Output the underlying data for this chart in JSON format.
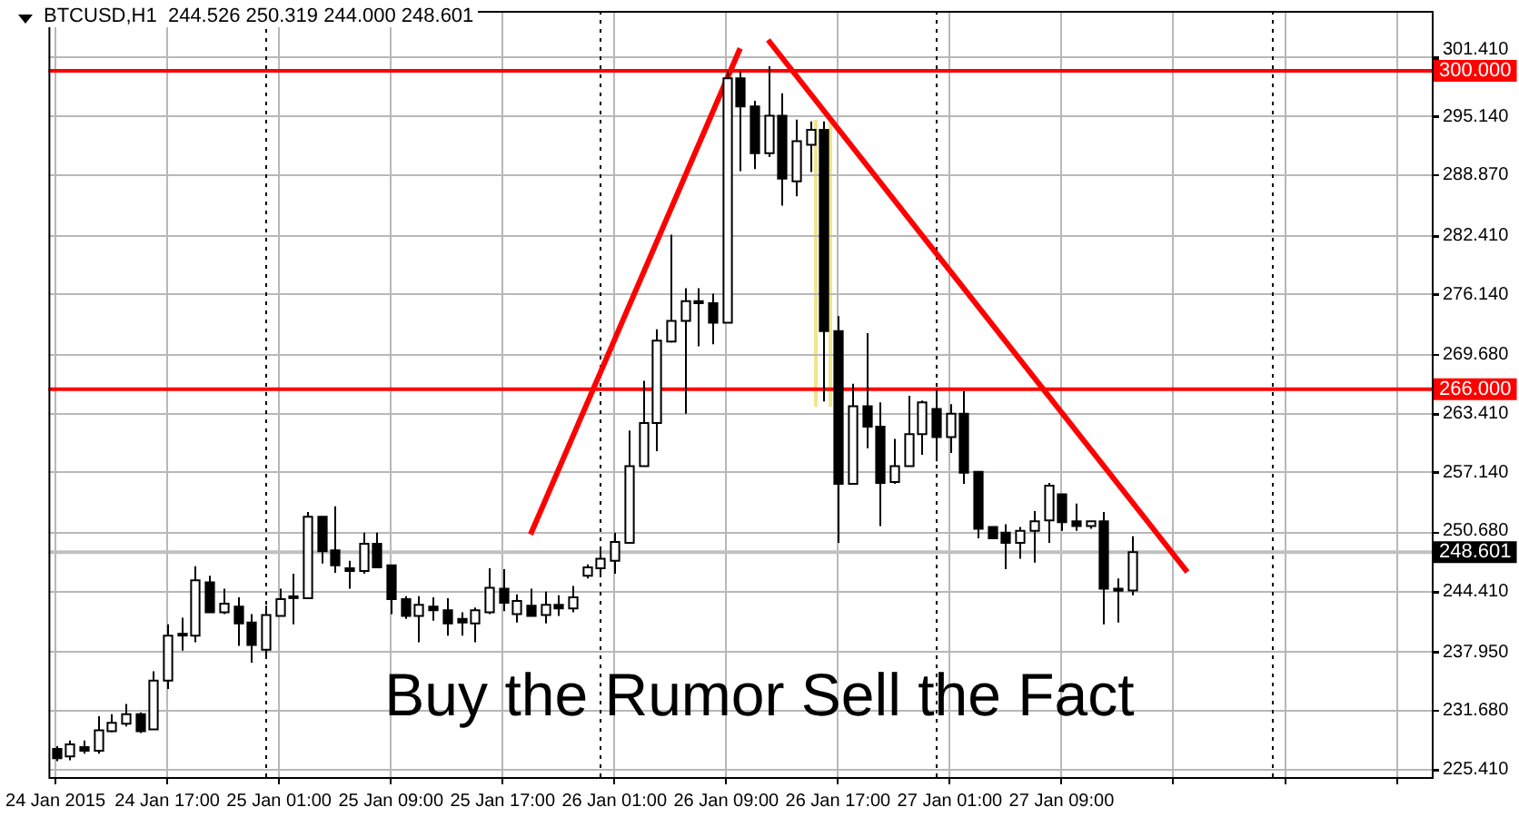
{
  "chart_data": {
    "type": "candlestick",
    "title": "BTCUSD,H1  244.526 250.319 244.000 248.601",
    "annotations": [
      "Buy the Rumor Sell the Fact"
    ],
    "x": [
      "2015-01-24T09:00",
      "2015-01-24T10:00",
      "2015-01-24T11:00",
      "2015-01-24T12:00",
      "2015-01-24T13:00",
      "2015-01-24T14:00",
      "2015-01-24T15:00",
      "2015-01-24T16:00",
      "2015-01-24T17:00",
      "2015-01-24T18:00",
      "2015-01-24T19:00",
      "2015-01-24T20:00",
      "2015-01-24T21:00",
      "2015-01-24T22:00",
      "2015-01-24T23:00",
      "2015-01-25T00:00",
      "2015-01-25T01:00",
      "2015-01-25T02:00",
      "2015-01-25T03:00",
      "2015-01-25T04:00",
      "2015-01-25T05:00",
      "2015-01-25T06:00",
      "2015-01-25T07:00",
      "2015-01-25T08:00",
      "2015-01-25T09:00",
      "2015-01-25T10:00",
      "2015-01-25T11:00",
      "2015-01-25T12:00",
      "2015-01-25T13:00",
      "2015-01-25T14:00",
      "2015-01-25T15:00",
      "2015-01-25T16:00",
      "2015-01-25T17:00",
      "2015-01-25T18:00",
      "2015-01-25T19:00",
      "2015-01-25T20:00",
      "2015-01-25T21:00",
      "2015-01-25T22:00",
      "2015-01-25T23:00",
      "2015-01-26T00:00",
      "2015-01-26T01:00",
      "2015-01-26T02:00",
      "2015-01-26T03:00",
      "2015-01-26T04:00",
      "2015-01-26T05:00",
      "2015-01-26T06:00",
      "2015-01-26T07:00",
      "2015-01-26T08:00",
      "2015-01-26T09:00",
      "2015-01-26T10:00",
      "2015-01-26T11:00",
      "2015-01-26T12:00",
      "2015-01-26T13:00",
      "2015-01-26T14:00",
      "2015-01-26T15:00",
      "2015-01-26T16:00",
      "2015-01-26T17:00",
      "2015-01-26T18:00",
      "2015-01-26T19:00",
      "2015-01-26T20:00",
      "2015-01-26T21:00",
      "2015-01-26T22:00",
      "2015-01-26T23:00",
      "2015-01-27T00:00",
      "2015-01-27T01:00",
      "2015-01-27T02:00",
      "2015-01-27T03:00",
      "2015-01-27T04:00",
      "2015-01-27T05:00",
      "2015-01-27T06:00",
      "2015-01-27T07:00",
      "2015-01-27T08:00",
      "2015-01-27T09:00",
      "2015-01-27T10:00",
      "2015-01-27T11:00",
      "2015-01-27T12:00",
      "2015-01-27T13:00",
      "2015-01-27T14:00"
    ],
    "ohlc": [
      [
        227.6,
        227.9,
        226.3,
        226.6
      ],
      [
        226.8,
        228.5,
        226.4,
        228.1
      ],
      [
        227.8,
        228.5,
        227.1,
        227.4
      ],
      [
        227.4,
        231.1,
        227.1,
        229.6
      ],
      [
        229.5,
        231.3,
        229.4,
        230.4
      ],
      [
        230.3,
        232.4,
        230.0,
        231.3
      ],
      [
        231.3,
        231.5,
        229.3,
        229.5
      ],
      [
        229.7,
        235.9,
        229.7,
        234.9
      ],
      [
        234.9,
        240.9,
        234.0,
        239.7
      ],
      [
        239.8,
        241.6,
        238.1,
        239.9
      ],
      [
        239.7,
        247.1,
        239.0,
        245.6
      ],
      [
        245.4,
        246.1,
        242.2,
        242.2
      ],
      [
        242.2,
        244.7,
        242.0,
        243.1
      ],
      [
        242.8,
        243.8,
        238.6,
        241.0
      ],
      [
        241.1,
        242.0,
        236.8,
        238.7
      ],
      [
        238.2,
        242.9,
        237.5,
        241.9
      ],
      [
        241.8,
        244.7,
        241.8,
        243.6
      ],
      [
        243.8,
        246.3,
        240.9,
        243.9
      ],
      [
        243.7,
        252.9,
        243.7,
        252.4
      ],
      [
        252.4,
        252.4,
        247.4,
        248.7
      ],
      [
        248.8,
        253.5,
        246.4,
        247.2
      ],
      [
        246.9,
        247.7,
        244.7,
        246.6
      ],
      [
        246.6,
        250.7,
        246.3,
        249.5
      ],
      [
        249.5,
        250.7,
        247.0,
        247.0
      ],
      [
        247.2,
        247.2,
        242.0,
        243.6
      ],
      [
        243.6,
        243.9,
        241.5,
        241.8
      ],
      [
        241.8,
        243.9,
        239.0,
        243.0
      ],
      [
        242.8,
        243.8,
        241.3,
        242.4
      ],
      [
        242.4,
        243.7,
        239.7,
        241.0
      ],
      [
        241.5,
        242.2,
        239.7,
        241.1
      ],
      [
        241.0,
        242.7,
        239.0,
        242.4
      ],
      [
        242.2,
        246.9,
        242.0,
        244.8
      ],
      [
        244.7,
        246.8,
        242.3,
        243.2
      ],
      [
        242.0,
        244.1,
        241.1,
        243.4
      ],
      [
        242.9,
        244.7,
        241.8,
        241.8
      ],
      [
        241.9,
        244.4,
        241.0,
        243.0
      ],
      [
        243.0,
        244.0,
        241.8,
        242.6
      ],
      [
        242.6,
        245.0,
        242.2,
        243.8
      ],
      [
        246.1,
        247.3,
        245.8,
        247.0
      ],
      [
        246.9,
        248.8,
        246.1,
        247.9
      ],
      [
        247.7,
        250.7,
        246.3,
        249.7
      ],
      [
        249.6,
        261.6,
        249.6,
        257.8
      ],
      [
        257.8,
        266.9,
        257.8,
        262.4
      ],
      [
        262.4,
        272.4,
        259.4,
        271.2
      ],
      [
        271.1,
        282.5,
        271.0,
        273.3
      ],
      [
        273.3,
        276.8,
        263.4,
        275.4
      ],
      [
        275.4,
        276.8,
        270.6,
        275.2
      ],
      [
        275.2,
        276.2,
        270.8,
        273.1
      ],
      [
        273.1,
        300.0,
        273.1,
        299.2
      ],
      [
        299.2,
        299.9,
        289.3,
        296.2
      ],
      [
        296.2,
        296.8,
        289.5,
        291.2
      ],
      [
        291.2,
        300.5,
        290.8,
        295.2
      ],
      [
        295.2,
        297.6,
        285.6,
        288.5
      ],
      [
        288.2,
        294.8,
        286.6,
        292.5
      ],
      [
        292.1,
        294.6,
        289.2,
        293.7
      ],
      [
        293.7,
        294.6,
        264.7,
        272.2
      ],
      [
        272.2,
        273.8,
        249.6,
        255.9
      ],
      [
        255.9,
        266.6,
        255.9,
        264.2
      ],
      [
        264.2,
        272.0,
        259.7,
        262.0
      ],
      [
        262.0,
        264.6,
        251.4,
        256.0
      ],
      [
        256.1,
        260.7,
        255.9,
        257.8
      ],
      [
        257.8,
        265.3,
        257.8,
        261.2
      ],
      [
        261.2,
        264.8,
        259.0,
        264.6
      ],
      [
        263.9,
        266.0,
        258.3,
        260.9
      ],
      [
        260.9,
        264.4,
        259.2,
        263.4
      ],
      [
        263.4,
        265.8,
        255.9,
        257.1
      ],
      [
        257.2,
        257.2,
        250.1,
        251.1
      ],
      [
        251.3,
        251.3,
        250.1,
        250.1
      ],
      [
        250.7,
        251.6,
        246.8,
        249.6
      ],
      [
        249.6,
        251.3,
        247.9,
        250.9
      ],
      [
        250.9,
        253.0,
        247.5,
        251.9
      ],
      [
        252.0,
        256.0,
        249.6,
        255.7
      ],
      [
        254.8,
        254.8,
        250.9,
        251.8
      ],
      [
        251.9,
        253.8,
        250.9,
        251.4
      ],
      [
        251.4,
        251.9,
        251.1,
        251.9
      ],
      [
        251.9,
        252.9,
        240.9,
        244.7
      ],
      [
        244.7,
        245.8,
        241.1,
        244.5
      ],
      [
        244.526,
        250.319,
        244.0,
        248.601
      ]
    ],
    "series": [
      {
        "type": "line",
        "color": "#ff0000",
        "x": [
          "2015-01-25T19:00",
          "2015-01-26T10:00"
        ],
        "values": [
          250.5,
          302.4
        ]
      },
      {
        "type": "line",
        "color": "#ff0000",
        "x": [
          "2015-01-26T12:00",
          "2015-01-27T18:00"
        ],
        "values": [
          303.3,
          246.5
        ]
      }
    ],
    "xlim": [
      "2015-01-24T08:30",
      "2015-01-28T11:30"
    ],
    "xticks": [
      {
        "value": "2015-01-24T09:00",
        "label": "24 Jan 2015"
      },
      {
        "value": "2015-01-24T17:00",
        "label": "24 Jan 17:00"
      },
      {
        "value": "2015-01-25T01:00",
        "label": "25 Jan 01:00"
      },
      {
        "value": "2015-01-25T09:00",
        "label": "25 Jan 09:00"
      },
      {
        "value": "2015-01-25T17:00",
        "label": "25 Jan 17:00"
      },
      {
        "value": "2015-01-26T01:00",
        "label": "26 Jan 01:00"
      },
      {
        "value": "2015-01-26T09:00",
        "label": "26 Jan 09:00"
      },
      {
        "value": "2015-01-26T17:00",
        "label": "26 Jan 17:00"
      },
      {
        "value": "2015-01-27T01:00",
        "label": "27 Jan 01:00"
      },
      {
        "value": "2015-01-27T09:00",
        "label": "27 Jan 09:00"
      },
      {
        "value": "2015-01-27T17:00",
        "label": null
      },
      {
        "value": "2015-01-28T01:00",
        "label": null
      },
      {
        "value": "2015-01-28T09:00",
        "label": null
      }
    ],
    "ylim": [
      224.6,
      306.4
    ],
    "yticks": [
      {
        "value": 225.41,
        "label": "225.410"
      },
      {
        "value": 231.68,
        "label": "231.680"
      },
      {
        "value": 237.95,
        "label": "237.950"
      },
      {
        "value": 244.41,
        "label": "244.410"
      },
      {
        "value": 250.68,
        "label": "250.680"
      },
      {
        "value": 257.14,
        "label": "257.140"
      },
      {
        "value": 263.41,
        "label": "263.410"
      },
      {
        "value": 269.68,
        "label": "269.680"
      },
      {
        "value": 276.14,
        "label": "276.140"
      },
      {
        "value": 282.41,
        "label": "282.410"
      },
      {
        "value": 288.87,
        "label": "288.870"
      },
      {
        "value": 295.14,
        "label": "295.140"
      },
      {
        "value": 301.41,
        "label": "301.410"
      }
    ],
    "ref_lines": [
      {
        "axis": "y",
        "value": 300,
        "label": "300.000",
        "color": "#ff0000"
      },
      {
        "axis": "y",
        "value": 266,
        "label": "266.000",
        "color": "#ff0000"
      },
      {
        "axis": "y",
        "value": 248.601,
        "label": "248.601",
        "color": "#c0c0c0"
      },
      {
        "axis": "x",
        "value": "2015-01-25T00:00",
        "color": "#000000",
        "line_style": "dotted"
      },
      {
        "axis": "x",
        "value": "2015-01-26T00:00",
        "color": "#000000",
        "line_style": "dotted"
      },
      {
        "axis": "x",
        "value": "2015-01-27T00:00",
        "color": "#000000",
        "line_style": "dotted"
      },
      {
        "axis": "x",
        "value": "2015-01-28T00:00",
        "color": "#000000",
        "line_style": "dotted"
      }
    ],
    "grid": true,
    "legend": false
  }
}
